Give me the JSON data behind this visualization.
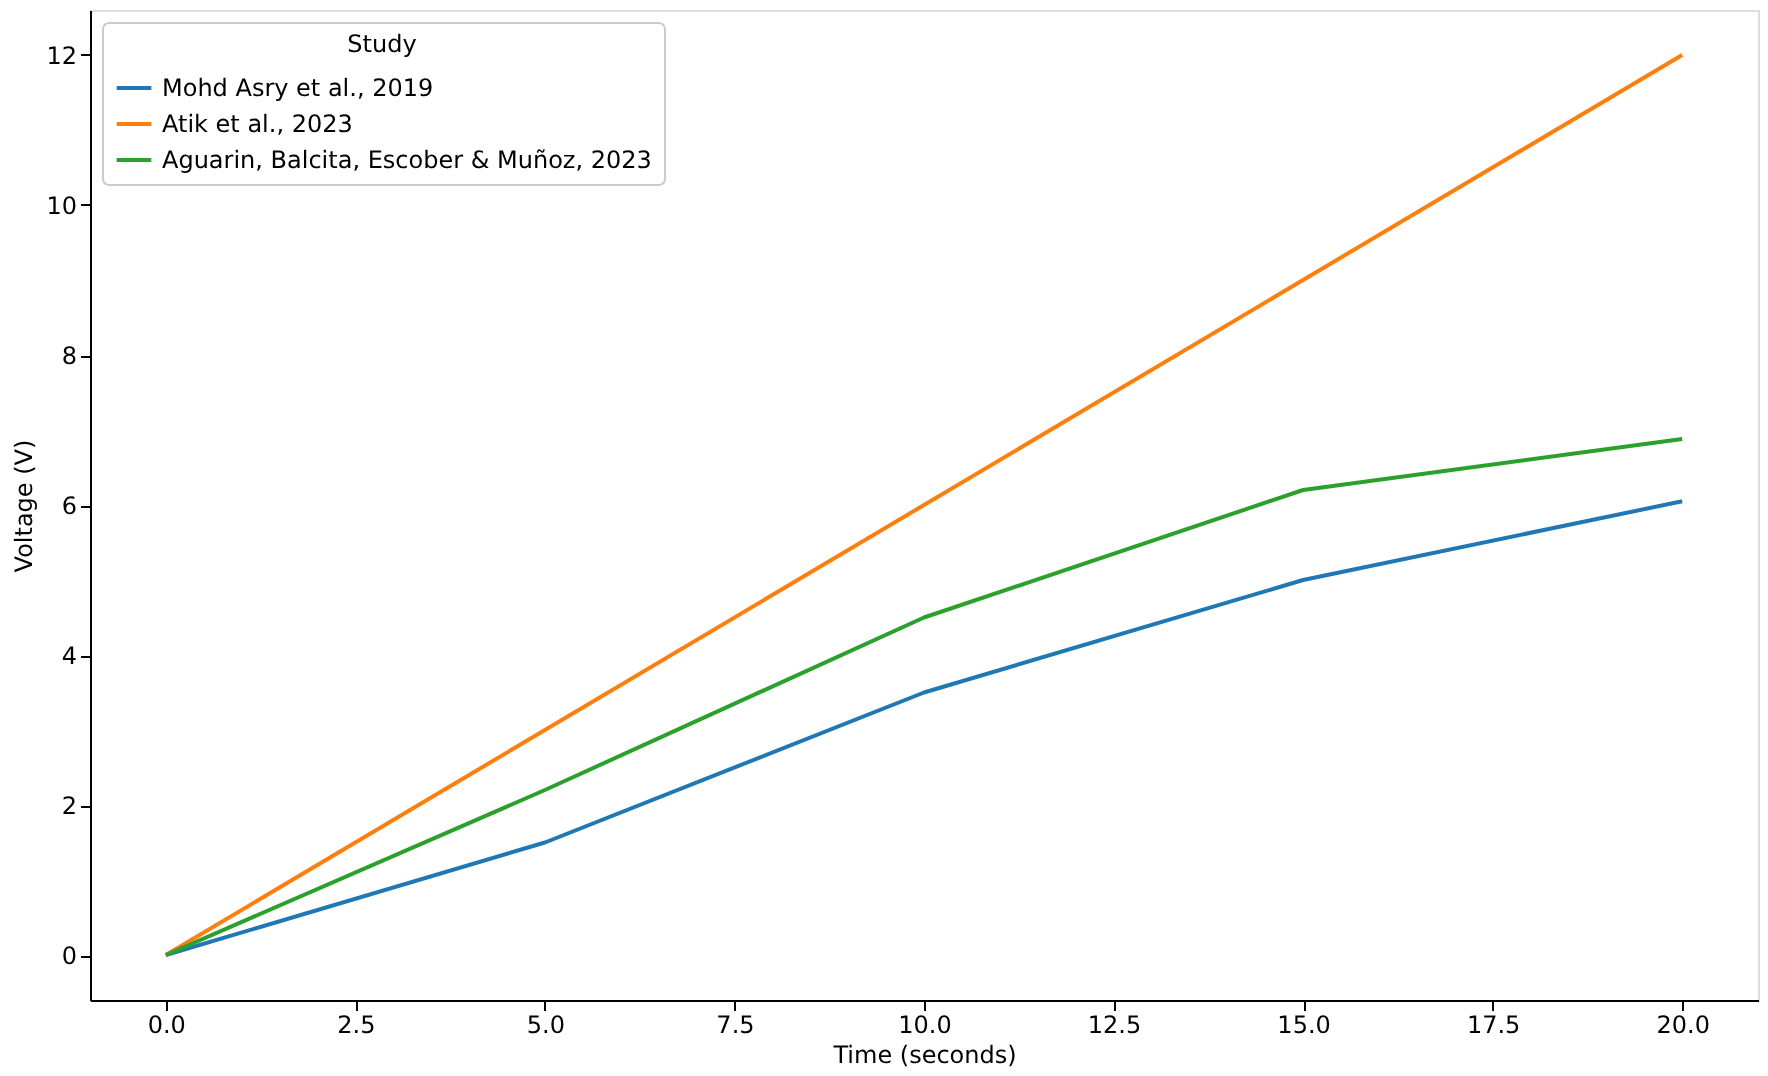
{
  "chart_data": {
    "type": "line",
    "xlabel": "Time (seconds)",
    "ylabel": "Voltage (V)",
    "legend_title": "Study",
    "x": [
      0,
      5,
      10,
      15,
      20
    ],
    "series": [
      {
        "name": "Mohd Asry et al., 2019",
        "color": "#1f77b4",
        "values": [
          0,
          1.5,
          3.5,
          5.0,
          6.05
        ]
      },
      {
        "name": "Atik et al., 2023",
        "color": "#ff7f0e",
        "values": [
          0,
          3,
          6,
          9,
          12
        ]
      },
      {
        "name": "Aguarin, Balcita, Escober & Muñoz, 2023",
        "color": "#2ca02c",
        "values": [
          0,
          2.2,
          4.5,
          6.2,
          6.88
        ]
      }
    ],
    "xlim": [
      -1,
      21
    ],
    "ylim": [
      -0.6,
      12.6
    ],
    "xticks": [
      {
        "value": 0,
        "label": "0.0"
      },
      {
        "value": 2.5,
        "label": "2.5"
      },
      {
        "value": 5,
        "label": "5.0"
      },
      {
        "value": 7.5,
        "label": "7.5"
      },
      {
        "value": 10,
        "label": "10.0"
      },
      {
        "value": 12.5,
        "label": "12.5"
      },
      {
        "value": 15,
        "label": "15.0"
      },
      {
        "value": 17.5,
        "label": "17.5"
      },
      {
        "value": 20,
        "label": "20.0"
      }
    ],
    "yticks": [
      0,
      2,
      4,
      6,
      8,
      10,
      12
    ],
    "grid": false,
    "legend": "top left",
    "marker": "none",
    "line_style": "solid"
  }
}
